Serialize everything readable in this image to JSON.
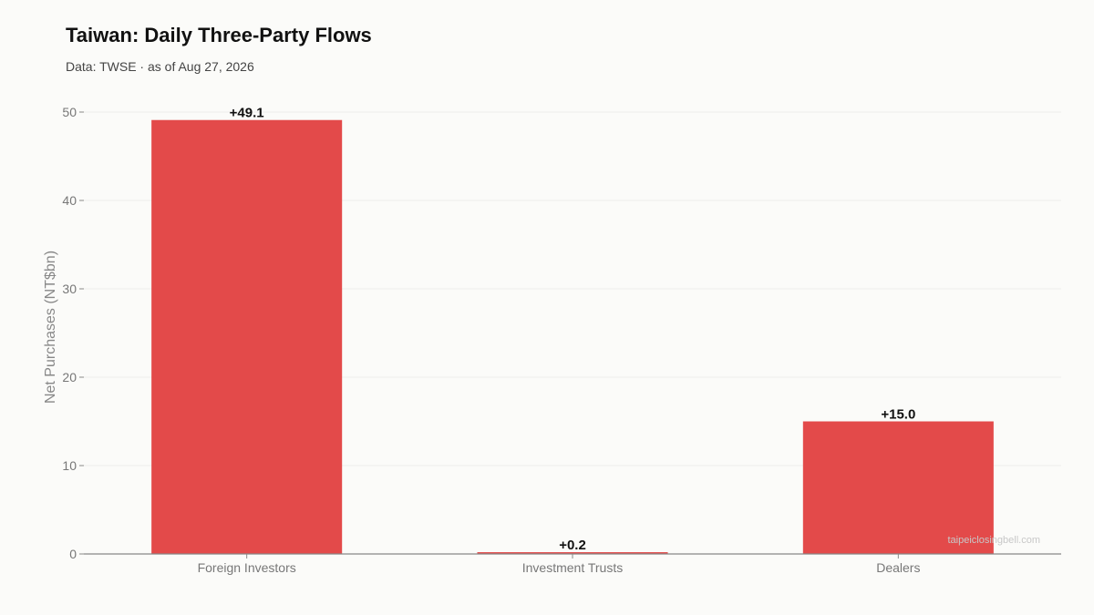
{
  "header": {
    "title": "Taiwan: Daily Three-Party Flows",
    "subtitle": "Data: TWSE · as of Aug 27, 2026"
  },
  "watermark": "taipeiclosingbell.com",
  "colors": {
    "bar": "#e34a4a",
    "grid": "#eeeeea",
    "axis": "#888888"
  },
  "chart_data": {
    "type": "bar",
    "title": "Taiwan: Daily Three-Party Flows",
    "subtitle": "Data: TWSE · as of Aug 27, 2026",
    "categories": [
      "Foreign Investors",
      "Investment Trusts",
      "Dealers"
    ],
    "values": [
      49.1,
      0.2,
      15.0
    ],
    "data_labels": [
      "+49.1",
      "+0.2",
      "+15.0"
    ],
    "ylabel": "Net Purchases (NT$bn)",
    "xlabel": "",
    "ylim": [
      0,
      50
    ],
    "yticks": [
      0,
      10,
      20,
      30,
      40,
      50
    ],
    "grid": true,
    "legend": "none"
  }
}
